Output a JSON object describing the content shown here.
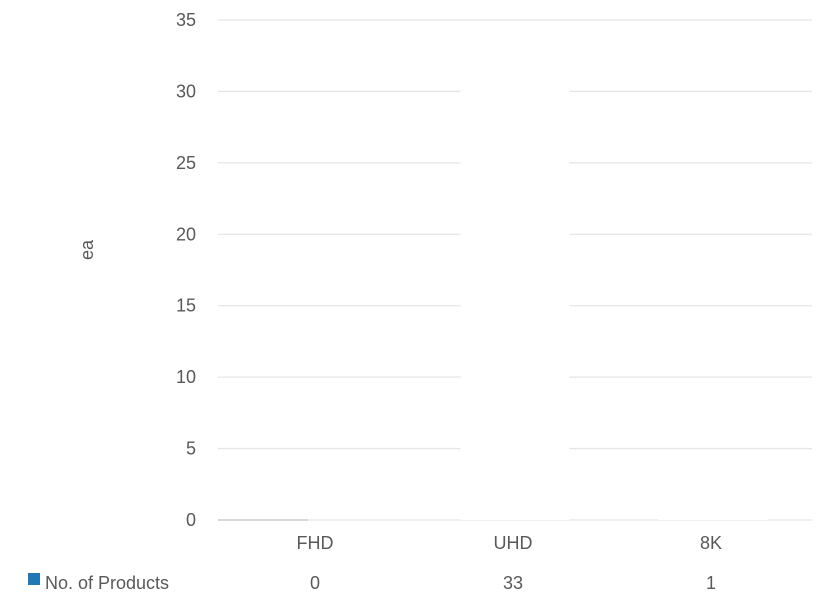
{
  "chart_data": {
    "type": "bar",
    "title": "",
    "xlabel": "",
    "ylabel": "ea",
    "ylim": [
      0,
      35
    ],
    "yticks": [
      0,
      5,
      10,
      15,
      20,
      25,
      30,
      35
    ],
    "grid": true,
    "legend": "data-table",
    "categories": [
      "FHD",
      "UHD",
      "8K"
    ],
    "series": [
      {
        "name": "No. of Products",
        "values": [
          0,
          33,
          1
        ],
        "color": "#1f77b4"
      }
    ],
    "data_table": {
      "row_label": "No. of Products",
      "values": [
        "0",
        "33",
        "1"
      ]
    }
  },
  "colors": {
    "grid": "#e6e6e6",
    "text": "#595959",
    "series": "#1f77b4"
  }
}
